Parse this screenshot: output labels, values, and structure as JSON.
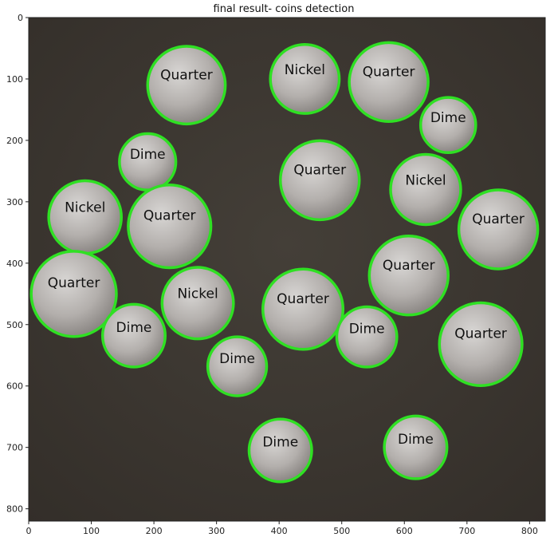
{
  "title": "final result- coins detection",
  "axes": {
    "x_ticks": [
      0,
      100,
      200,
      300,
      400,
      500,
      600,
      700,
      800
    ],
    "y_ticks": [
      0,
      100,
      200,
      300,
      400,
      500,
      600,
      700,
      800
    ],
    "x_range": [
      0,
      825
    ],
    "y_range": [
      0,
      820
    ]
  },
  "colors": {
    "background": "#3b3630",
    "circle": "#2fe023",
    "label": "#111111"
  },
  "coins": [
    {
      "label": "Quarter",
      "x": 252,
      "y": 110,
      "r": 62
    },
    {
      "label": "Nickel",
      "x": 441,
      "y": 100,
      "r": 55
    },
    {
      "label": "Quarter",
      "x": 575,
      "y": 105,
      "r": 63
    },
    {
      "label": "Dime",
      "x": 670,
      "y": 175,
      "r": 44
    },
    {
      "label": "Dime",
      "x": 190,
      "y": 235,
      "r": 45
    },
    {
      "label": "Quarter",
      "x": 465,
      "y": 265,
      "r": 63
    },
    {
      "label": "Nickel",
      "x": 634,
      "y": 280,
      "r": 56
    },
    {
      "label": "Nickel",
      "x": 90,
      "y": 325,
      "r": 58
    },
    {
      "label": "Quarter",
      "x": 225,
      "y": 340,
      "r": 66
    },
    {
      "label": "Quarter",
      "x": 750,
      "y": 345,
      "r": 63
    },
    {
      "label": "Quarter",
      "x": 607,
      "y": 420,
      "r": 63
    },
    {
      "label": "Quarter",
      "x": 72,
      "y": 450,
      "r": 68
    },
    {
      "label": "Nickel",
      "x": 270,
      "y": 465,
      "r": 57
    },
    {
      "label": "Quarter",
      "x": 438,
      "y": 475,
      "r": 64
    },
    {
      "label": "Dime",
      "x": 168,
      "y": 518,
      "r": 50
    },
    {
      "label": "Dime",
      "x": 540,
      "y": 520,
      "r": 48
    },
    {
      "label": "Quarter",
      "x": 722,
      "y": 532,
      "r": 66
    },
    {
      "label": "Dime",
      "x": 333,
      "y": 568,
      "r": 47
    },
    {
      "label": "Dime",
      "x": 402,
      "y": 705,
      "r": 50
    },
    {
      "label": "Dime",
      "x": 618,
      "y": 700,
      "r": 50
    }
  ]
}
